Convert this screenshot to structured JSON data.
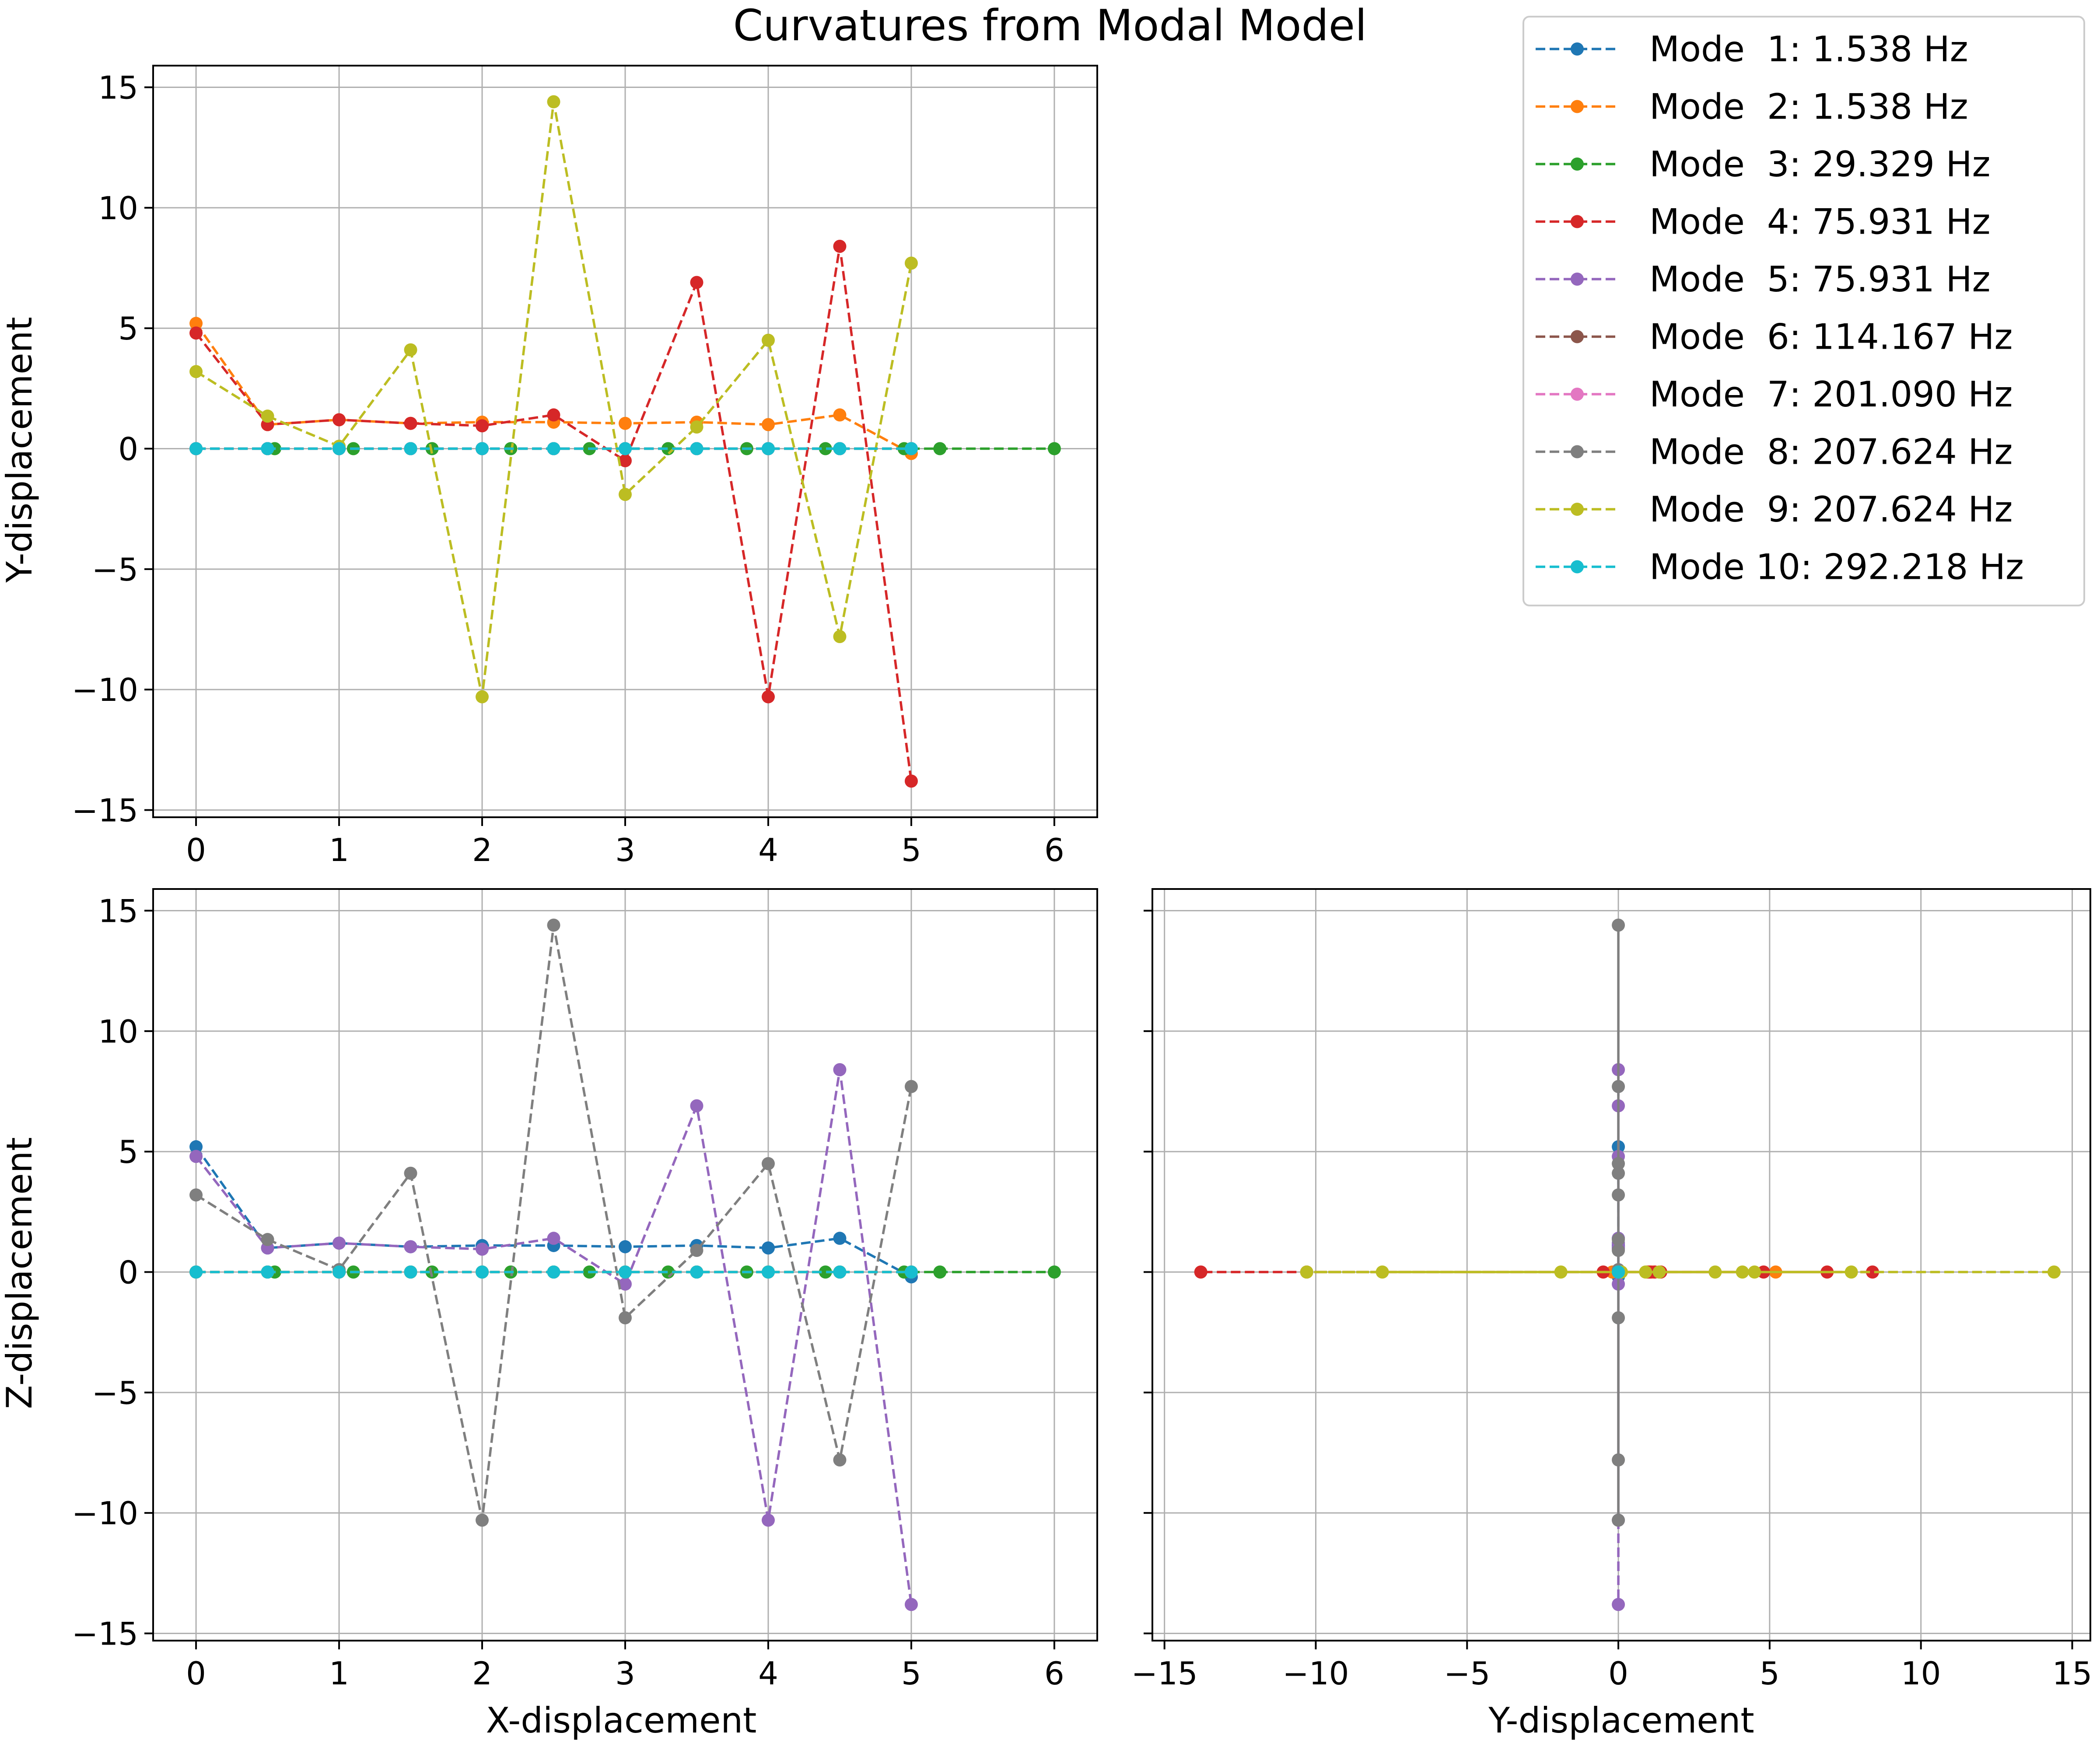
{
  "figure": {
    "title": "Curvatures from Modal Model"
  },
  "legend": {
    "placement": "top-right",
    "entries": [
      {
        "label": "Mode  1: 1.538 Hz",
        "color": "#1f77b4"
      },
      {
        "label": "Mode  2: 1.538 Hz",
        "color": "#ff7f0e"
      },
      {
        "label": "Mode  3: 29.329 Hz",
        "color": "#2ca02c"
      },
      {
        "label": "Mode  4: 75.931 Hz",
        "color": "#d62728"
      },
      {
        "label": "Mode  5: 75.931 Hz",
        "color": "#9467bd"
      },
      {
        "label": "Mode  6: 114.167 Hz",
        "color": "#8c564b"
      },
      {
        "label": "Mode  7: 201.090 Hz",
        "color": "#e377c2"
      },
      {
        "label": "Mode  8: 207.624 Hz",
        "color": "#7f7f7f"
      },
      {
        "label": "Mode  9: 207.624 Hz",
        "color": "#bcbd22"
      },
      {
        "label": "Mode 10: 292.218 Hz",
        "color": "#17becf"
      }
    ]
  },
  "chart_data": [
    {
      "id": "xy",
      "type": "line",
      "xlabel": "",
      "ylabel": "Y-displacement",
      "xlim": [
        -0.3,
        6.3
      ],
      "ylim": [
        -15.3,
        15.9
      ],
      "xticks": [
        0,
        1,
        2,
        3,
        4,
        5,
        6
      ],
      "yticks": [
        15,
        10,
        5,
        0,
        -5,
        -10,
        -15
      ],
      "grid": true,
      "line_style": "dashed",
      "series": [
        {
          "mode": 1,
          "color": "#1f77b4",
          "x": [
            0,
            0.5,
            1,
            1.5,
            2,
            2.5,
            3,
            3.5,
            4,
            4.5,
            5
          ],
          "y": [
            0,
            0,
            0,
            0,
            0,
            0,
            0,
            0,
            0,
            0,
            0
          ]
        },
        {
          "mode": 2,
          "color": "#ff7f0e",
          "x": [
            0,
            0.5,
            1,
            1.5,
            2,
            2.5,
            3,
            3.5,
            4,
            4.5,
            5
          ],
          "y": [
            5.2,
            1.0,
            1.2,
            1.05,
            1.1,
            1.1,
            1.05,
            1.1,
            1.0,
            1.4,
            -0.2
          ]
        },
        {
          "mode": 3,
          "color": "#2ca02c",
          "x": [
            0,
            0.55,
            1.1,
            1.65,
            2.2,
            2.75,
            3.3,
            3.85,
            4.4,
            4.95,
            5.2,
            6
          ],
          "y": [
            0,
            0,
            0,
            0,
            0,
            0,
            0,
            0,
            0,
            0,
            0,
            0
          ]
        },
        {
          "mode": 4,
          "color": "#d62728",
          "x": [
            0,
            0.5,
            1,
            1.5,
            2,
            2.5,
            3,
            3.5,
            4,
            4.5,
            5
          ],
          "y": [
            4.8,
            1.0,
            1.2,
            1.05,
            0.95,
            1.4,
            -0.5,
            6.9,
            -10.3,
            8.4,
            -13.8
          ]
        },
        {
          "mode": 5,
          "color": "#9467bd",
          "x": [
            0,
            0.5,
            1,
            1.5,
            2,
            2.5,
            3,
            3.5,
            4,
            4.5,
            5
          ],
          "y": [
            0,
            0,
            0,
            0,
            0,
            0,
            0,
            0,
            0,
            0,
            0
          ]
        },
        {
          "mode": 6,
          "color": "#8c564b",
          "x": [
            0,
            0.5,
            1,
            1.5,
            2,
            2.5,
            3,
            3.5,
            4,
            4.5,
            5
          ],
          "y": [
            0,
            0,
            0,
            0,
            0,
            0,
            0,
            0,
            0,
            0,
            0
          ]
        },
        {
          "mode": 7,
          "color": "#e377c2",
          "x": [
            0,
            0.5,
            1,
            1.5,
            2,
            2.5,
            3,
            3.5,
            4,
            4.5,
            5
          ],
          "y": [
            0,
            0,
            0,
            0,
            0,
            0,
            0,
            0,
            0,
            0,
            0
          ]
        },
        {
          "mode": 8,
          "color": "#7f7f7f",
          "x": [
            0,
            0.5,
            1,
            1.5,
            2,
            2.5,
            3,
            3.5,
            4,
            4.5,
            5
          ],
          "y": [
            0,
            0,
            0,
            0,
            0,
            0,
            0,
            0,
            0,
            0,
            0
          ]
        },
        {
          "mode": 9,
          "color": "#bcbd22",
          "x": [
            0,
            0.5,
            1,
            1.5,
            2,
            2.5,
            3,
            3.5,
            4,
            4.5,
            5
          ],
          "y": [
            3.2,
            1.35,
            0.1,
            4.1,
            -10.3,
            14.4,
            -1.9,
            0.9,
            4.5,
            -7.8,
            7.7
          ]
        },
        {
          "mode": 10,
          "color": "#17becf",
          "x": [
            0,
            0.5,
            1,
            1.5,
            2,
            2.5,
            3,
            3.5,
            4,
            4.5,
            5
          ],
          "y": [
            0,
            0,
            0,
            0,
            0,
            0,
            0,
            0,
            0,
            0,
            0
          ]
        }
      ]
    },
    {
      "id": "xz",
      "type": "line",
      "xlabel": "X-displacement",
      "ylabel": "Z-displacement",
      "xlim": [
        -0.3,
        6.3
      ],
      "ylim": [
        -15.3,
        15.9
      ],
      "xticks": [
        0,
        1,
        2,
        3,
        4,
        5,
        6
      ],
      "yticks": [
        15,
        10,
        5,
        0,
        -5,
        -10,
        -15
      ],
      "grid": true,
      "line_style": "dashed",
      "series": [
        {
          "mode": 1,
          "color": "#1f77b4",
          "x": [
            0,
            0.5,
            1,
            1.5,
            2,
            2.5,
            3,
            3.5,
            4,
            4.5,
            5
          ],
          "y": [
            5.2,
            1.0,
            1.2,
            1.05,
            1.1,
            1.1,
            1.05,
            1.1,
            1.0,
            1.4,
            -0.2
          ]
        },
        {
          "mode": 2,
          "color": "#ff7f0e",
          "x": [
            0,
            0.5,
            1,
            1.5,
            2,
            2.5,
            3,
            3.5,
            4,
            4.5,
            5
          ],
          "y": [
            0,
            0,
            0,
            0,
            0,
            0,
            0,
            0,
            0,
            0,
            0
          ]
        },
        {
          "mode": 3,
          "color": "#2ca02c",
          "x": [
            0,
            0.55,
            1.1,
            1.65,
            2.2,
            2.75,
            3.3,
            3.85,
            4.4,
            4.95,
            5.2,
            6
          ],
          "y": [
            0,
            0,
            0,
            0,
            0,
            0,
            0,
            0,
            0,
            0,
            0,
            0
          ]
        },
        {
          "mode": 4,
          "color": "#d62728",
          "x": [
            0,
            0.5,
            1,
            1.5,
            2,
            2.5,
            3,
            3.5,
            4,
            4.5,
            5
          ],
          "y": [
            0,
            0,
            0,
            0,
            0,
            0,
            0,
            0,
            0,
            0,
            0
          ]
        },
        {
          "mode": 5,
          "color": "#9467bd",
          "x": [
            0,
            0.5,
            1,
            1.5,
            2,
            2.5,
            3,
            3.5,
            4,
            4.5,
            5
          ],
          "y": [
            4.8,
            1.0,
            1.2,
            1.05,
            0.95,
            1.4,
            -0.5,
            6.9,
            -10.3,
            8.4,
            -13.8
          ]
        },
        {
          "mode": 6,
          "color": "#8c564b",
          "x": [
            0,
            0.5,
            1,
            1.5,
            2,
            2.5,
            3,
            3.5,
            4,
            4.5,
            5
          ],
          "y": [
            0,
            0,
            0,
            0,
            0,
            0,
            0,
            0,
            0,
            0,
            0
          ]
        },
        {
          "mode": 7,
          "color": "#e377c2",
          "x": [
            0,
            0.5,
            1,
            1.5,
            2,
            2.5,
            3,
            3.5,
            4,
            4.5,
            5
          ],
          "y": [
            0,
            0,
            0,
            0,
            0,
            0,
            0,
            0,
            0,
            0,
            0
          ]
        },
        {
          "mode": 8,
          "color": "#7f7f7f",
          "x": [
            0,
            0.5,
            1,
            1.5,
            2,
            2.5,
            3,
            3.5,
            4,
            4.5,
            5
          ],
          "y": [
            3.2,
            1.35,
            0.1,
            4.1,
            -10.3,
            14.4,
            -1.9,
            0.9,
            4.5,
            -7.8,
            7.7
          ]
        },
        {
          "mode": 9,
          "color": "#bcbd22",
          "x": [
            0,
            0.5,
            1,
            1.5,
            2,
            2.5,
            3,
            3.5,
            4,
            4.5,
            5
          ],
          "y": [
            0,
            0,
            0,
            0,
            0,
            0,
            0,
            0,
            0,
            0,
            0
          ]
        },
        {
          "mode": 10,
          "color": "#17becf",
          "x": [
            0,
            0.5,
            1,
            1.5,
            2,
            2.5,
            3,
            3.5,
            4,
            4.5,
            5
          ],
          "y": [
            0,
            0,
            0,
            0,
            0,
            0,
            0,
            0,
            0,
            0,
            0
          ]
        }
      ]
    },
    {
      "id": "yz",
      "type": "line",
      "xlabel": "Y-displacement",
      "ylabel": "",
      "xlim": [
        -15.4,
        15.6
      ],
      "ylim": [
        -15.3,
        15.9
      ],
      "xticks": [
        -15,
        -10,
        -5,
        0,
        5,
        10,
        15
      ],
      "yticks": [
        15,
        10,
        5,
        0,
        -5,
        -10,
        -15
      ],
      "ytick_labels_shown": false,
      "grid": true,
      "line_style": "dashed",
      "series": [
        {
          "mode": 1,
          "color": "#1f77b4",
          "x": [
            0,
            0,
            0,
            0,
            0,
            0,
            0,
            0,
            0,
            0,
            0
          ],
          "y": [
            5.2,
            1.0,
            1.2,
            1.05,
            1.1,
            1.1,
            1.05,
            1.1,
            1.0,
            1.4,
            -0.2
          ]
        },
        {
          "mode": 2,
          "color": "#ff7f0e",
          "x": [
            5.2,
            1.0,
            1.2,
            1.05,
            1.1,
            1.1,
            1.05,
            1.1,
            1.0,
            1.4,
            -0.2
          ],
          "y": [
            0,
            0,
            0,
            0,
            0,
            0,
            0,
            0,
            0,
            0,
            0
          ]
        },
        {
          "mode": 3,
          "color": "#2ca02c",
          "x": [
            0,
            0,
            0
          ],
          "y": [
            0,
            0,
            0
          ]
        },
        {
          "mode": 4,
          "color": "#d62728",
          "x": [
            4.8,
            1.0,
            1.2,
            1.05,
            0.95,
            1.4,
            -0.5,
            6.9,
            -10.3,
            8.4,
            -13.8
          ],
          "y": [
            0,
            0,
            0,
            0,
            0,
            0,
            0,
            0,
            0,
            0,
            0
          ]
        },
        {
          "mode": 5,
          "color": "#9467bd",
          "x": [
            0,
            0,
            0,
            0,
            0,
            0,
            0,
            0,
            0,
            0,
            0
          ],
          "y": [
            4.8,
            1.0,
            1.2,
            1.05,
            0.95,
            1.4,
            -0.5,
            6.9,
            -10.3,
            8.4,
            -13.8
          ]
        },
        {
          "mode": 6,
          "color": "#8c564b",
          "x": [
            0,
            0
          ],
          "y": [
            0,
            0
          ]
        },
        {
          "mode": 7,
          "color": "#e377c2",
          "x": [
            0,
            0
          ],
          "y": [
            0,
            0
          ]
        },
        {
          "mode": 8,
          "color": "#7f7f7f",
          "x": [
            0,
            0,
            0,
            0,
            0,
            0,
            0,
            0,
            0,
            0,
            0
          ],
          "y": [
            3.2,
            1.35,
            0.1,
            4.1,
            -10.3,
            14.4,
            -1.9,
            0.9,
            4.5,
            -7.8,
            7.7
          ],
          "line_style": "solid"
        },
        {
          "mode": 9,
          "color": "#bcbd22",
          "x": [
            3.2,
            1.35,
            0.1,
            4.1,
            -10.3,
            14.4,
            -1.9,
            0.9,
            4.5,
            -7.8,
            7.7
          ],
          "y": [
            0,
            0,
            0,
            0,
            0,
            0,
            0,
            0,
            0,
            0,
            0
          ]
        },
        {
          "mode": 10,
          "color": "#17becf",
          "x": [
            0,
            0
          ],
          "y": [
            0,
            0
          ]
        }
      ]
    }
  ]
}
